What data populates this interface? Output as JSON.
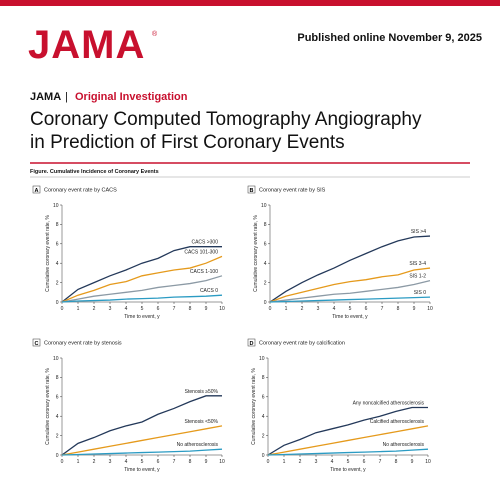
{
  "header": {
    "logo": "JAMA",
    "logo_mark": "®",
    "published": "Published online November 9, 2025",
    "journal": "JAMA",
    "separator": "|",
    "section": "Original Investigation",
    "title_lines": [
      "Coronary Computed Tomography Angiography",
      "in Prediction of First Coronary Events"
    ],
    "figure_caption": "Figure. Cumulative Incidence of Coronary Events"
  },
  "chart_data": [
    {
      "type": "line",
      "panel": "A",
      "title": "Coronary event rate by CACS",
      "x_label": "Time to event, y",
      "y_label": "Cumulative coronary event rate, %",
      "x": [
        0,
        1,
        2,
        3,
        4,
        5,
        6,
        7,
        8,
        9,
        10
      ],
      "xlim": [
        0,
        10
      ],
      "xticks": [
        0,
        1,
        2,
        3,
        4,
        5,
        6,
        7,
        8,
        9,
        10
      ],
      "ylim": [
        0,
        10
      ],
      "yticks": [
        0,
        2,
        4,
        6,
        8,
        10
      ],
      "series": [
        {
          "name": "CACS >300",
          "color": "#24395a",
          "values": [
            0,
            1.3,
            2.0,
            2.7,
            3.3,
            4.0,
            4.5,
            5.3,
            5.7,
            5.7,
            5.7
          ]
        },
        {
          "name": "CACS 101-300",
          "color": "#e59a1c",
          "values": [
            0,
            0.7,
            1.2,
            1.8,
            2.1,
            2.7,
            3.0,
            3.3,
            3.5,
            4.0,
            4.7
          ]
        },
        {
          "name": "CACS 1-100",
          "color": "#8c9aa5",
          "values": [
            0,
            0.3,
            0.6,
            0.8,
            1.0,
            1.2,
            1.5,
            1.7,
            1.9,
            2.2,
            2.7
          ]
        },
        {
          "name": "CACS 0",
          "color": "#2b9bc3",
          "values": [
            0,
            0.1,
            0.15,
            0.2,
            0.3,
            0.35,
            0.4,
            0.5,
            0.55,
            0.6,
            0.7
          ]
        }
      ]
    },
    {
      "type": "line",
      "panel": "B",
      "title": "Coronary event rate by SIS",
      "x_label": "Time to event, y",
      "y_label": "Cumulative coronary event rate, %",
      "x": [
        0,
        1,
        2,
        3,
        4,
        5,
        6,
        7,
        8,
        9,
        10
      ],
      "xlim": [
        0,
        10
      ],
      "xticks": [
        0,
        1,
        2,
        3,
        4,
        5,
        6,
        7,
        8,
        9,
        10
      ],
      "ylim": [
        0,
        10
      ],
      "yticks": [
        0,
        2,
        4,
        6,
        8,
        10
      ],
      "series": [
        {
          "name": "SIS >4",
          "color": "#24395a",
          "values": [
            0,
            1.1,
            2.0,
            2.8,
            3.5,
            4.3,
            5.0,
            5.7,
            6.3,
            6.7,
            6.8
          ]
        },
        {
          "name": "SIS 3-4",
          "color": "#e59a1c",
          "values": [
            0,
            0.6,
            1.0,
            1.4,
            1.8,
            2.1,
            2.3,
            2.6,
            2.8,
            3.3,
            3.5
          ]
        },
        {
          "name": "SIS 1-2",
          "color": "#8c9aa5",
          "values": [
            0,
            0.2,
            0.4,
            0.6,
            0.8,
            0.9,
            1.1,
            1.3,
            1.5,
            1.8,
            2.2
          ]
        },
        {
          "name": "SIS 0",
          "color": "#2b9bc3",
          "values": [
            0,
            0.05,
            0.1,
            0.15,
            0.2,
            0.25,
            0.3,
            0.35,
            0.4,
            0.45,
            0.5
          ]
        }
      ]
    },
    {
      "type": "line",
      "panel": "C",
      "title": "Coronary event rate by stenosis",
      "x_label": "Time to event, y",
      "y_label": "Cumulative coronary event rate, %",
      "x": [
        0,
        1,
        2,
        3,
        4,
        5,
        6,
        7,
        8,
        9,
        10
      ],
      "xlim": [
        0,
        10
      ],
      "xticks": [
        0,
        1,
        2,
        3,
        4,
        5,
        6,
        7,
        8,
        9,
        10
      ],
      "ylim": [
        0,
        10
      ],
      "yticks": [
        0,
        2,
        4,
        6,
        8,
        10
      ],
      "series": [
        {
          "name": "Stenosis ≥50%",
          "color": "#24395a",
          "values": [
            0,
            1.2,
            1.8,
            2.5,
            3.0,
            3.4,
            4.2,
            4.8,
            5.5,
            6.1,
            6.1
          ]
        },
        {
          "name": "Stenosis <50%",
          "color": "#e59a1c",
          "values": [
            0,
            0.3,
            0.6,
            0.9,
            1.2,
            1.5,
            1.8,
            2.1,
            2.4,
            2.7,
            3.0
          ]
        },
        {
          "name": "No atherosclerosis",
          "color": "#2b9bc3",
          "values": [
            0,
            0.05,
            0.1,
            0.15,
            0.2,
            0.25,
            0.3,
            0.35,
            0.4,
            0.5,
            0.6
          ]
        }
      ]
    },
    {
      "type": "line",
      "panel": "D",
      "title": "Coronary event rate by calcification",
      "x_label": "Time to event, y",
      "y_label": "Cumulative coronary event rate, %",
      "x": [
        0,
        1,
        2,
        3,
        4,
        5,
        6,
        7,
        8,
        9,
        10
      ],
      "xlim": [
        0,
        10
      ],
      "xticks": [
        0,
        1,
        2,
        3,
        4,
        5,
        6,
        7,
        8,
        9,
        10
      ],
      "ylim": [
        0,
        10
      ],
      "yticks": [
        0,
        2,
        4,
        6,
        8,
        10
      ],
      "series": [
        {
          "name": "Any noncalcified atherosclerosis",
          "color": "#24395a",
          "values": [
            0,
            1.0,
            1.6,
            2.3,
            2.7,
            3.1,
            3.6,
            4.0,
            4.5,
            4.9,
            4.9
          ]
        },
        {
          "name": "Calcified atherosclerosis",
          "color": "#e59a1c",
          "values": [
            0,
            0.3,
            0.6,
            0.9,
            1.2,
            1.5,
            1.8,
            2.1,
            2.4,
            2.7,
            3.0
          ]
        },
        {
          "name": "No atherosclerosis",
          "color": "#2b9bc3",
          "values": [
            0,
            0.05,
            0.1,
            0.15,
            0.2,
            0.25,
            0.3,
            0.35,
            0.4,
            0.5,
            0.6
          ]
        }
      ]
    }
  ]
}
